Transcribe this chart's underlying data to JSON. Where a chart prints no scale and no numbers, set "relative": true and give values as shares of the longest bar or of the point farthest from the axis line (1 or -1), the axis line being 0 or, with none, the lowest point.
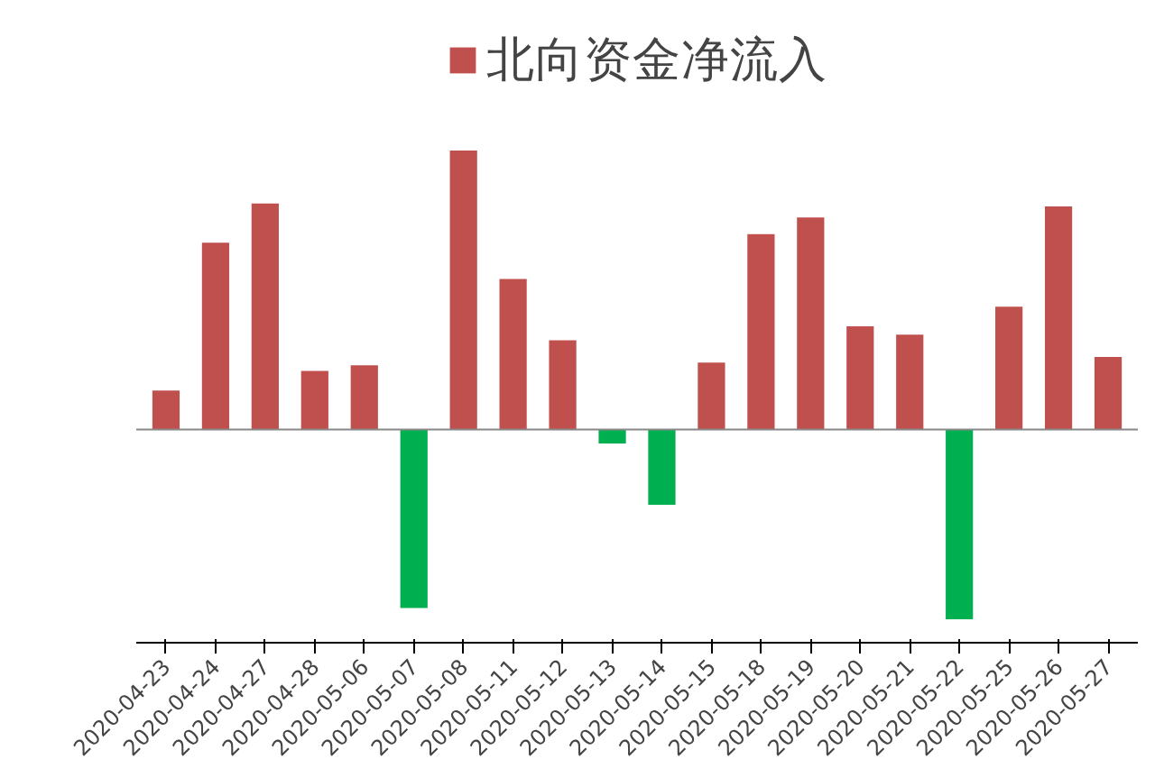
{
  "chart_data": {
    "type": "bar",
    "relative": true,
    "categories": [
      "2020-04-23",
      "2020-04-24",
      "2020-04-27",
      "2020-04-28",
      "2020-05-06",
      "2020-05-07",
      "2020-05-08",
      "2020-05-11",
      "2020-05-12",
      "2020-05-13",
      "2020-05-14",
      "2020-05-15",
      "2020-05-18",
      "2020-05-19",
      "2020-05-20",
      "2020-05-21",
      "2020-05-22",
      "2020-05-25",
      "2020-05-26",
      "2020-05-27"
    ],
    "series": [
      {
        "name": "北向资金净流入",
        "color": "#c0504d",
        "colors": [
          "#c0504d",
          "#c0504d",
          "#c0504d",
          "#c0504d",
          "#c0504d",
          "#00b050",
          "#c0504d",
          "#c0504d",
          "#c0504d",
          "#00b050",
          "#00b050",
          "#c0504d",
          "#c0504d",
          "#c0504d",
          "#c0504d",
          "#c0504d",
          "#00b050",
          "#c0504d",
          "#c0504d",
          "#c0504d"
        ],
        "values": [
          0.14,
          0.67,
          0.81,
          0.21,
          0.23,
          -0.64,
          1,
          0.54,
          0.32,
          -0.05,
          -0.27,
          0.24,
          0.7,
          0.76,
          0.37,
          0.34,
          -0.68,
          0.44,
          0.8,
          0.26
        ]
      }
    ],
    "legend": "top",
    "grid": false
  }
}
